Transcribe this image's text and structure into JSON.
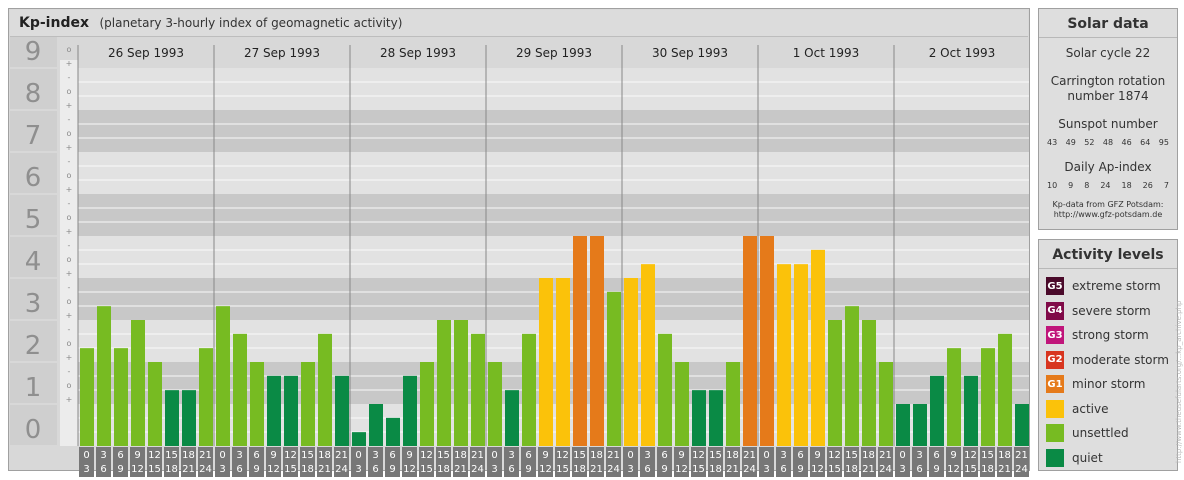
{
  "header": {
    "title": "Kp-index",
    "subtitle": "(planetary 3-hourly index of geomagnetic activity)"
  },
  "chart_data": {
    "type": "bar",
    "ylim": [
      0,
      9
    ],
    "y_ticks": [
      "0",
      "1",
      "2",
      "3",
      "4",
      "5",
      "6",
      "7",
      "8",
      "9"
    ],
    "minor_tick_labels": [
      "+",
      "o",
      "-"
    ],
    "days": [
      "26 Sep 1993",
      "27 Sep 1993",
      "28 Sep 1993",
      "29 Sep 1993",
      "30 Sep 1993",
      "1 Oct 1993",
      "2 Oct 1993"
    ],
    "hour_start": [
      "0",
      "3",
      "6",
      "9",
      "12",
      "15",
      "18",
      "21"
    ],
    "hour_end": [
      "3",
      "6",
      "9",
      "12",
      "15",
      "18",
      "21",
      "24"
    ],
    "values": [
      [
        2.33,
        3.33,
        2.33,
        3.0,
        2.0,
        1.33,
        1.33,
        2.33
      ],
      [
        3.33,
        2.67,
        2.0,
        1.67,
        1.67,
        2.0,
        2.67,
        1.67
      ],
      [
        0.33,
        1.0,
        0.67,
        1.67,
        2.0,
        3.0,
        3.0,
        2.67
      ],
      [
        2.0,
        1.33,
        2.67,
        4.0,
        4.0,
        5.0,
        5.0,
        3.67
      ],
      [
        4.0,
        4.33,
        2.67,
        2.0,
        1.33,
        1.33,
        2.0,
        5.0
      ],
      [
        5.0,
        4.33,
        4.33,
        4.67,
        3.0,
        3.33,
        3.0,
        2.0
      ],
      [
        1.0,
        1.0,
        1.67,
        2.33,
        1.67,
        2.33,
        2.67,
        1.0
      ]
    ]
  },
  "solar": {
    "heading": "Solar data",
    "cycle": "Solar cycle 22",
    "carrington_line1": "Carrington rotation",
    "carrington_line2": "number 1874",
    "sunspot_label": "Sunspot number",
    "sunspot_values": [
      "43",
      "49",
      "52",
      "48",
      "46",
      "64",
      "95"
    ],
    "ap_label": "Daily Ap-index",
    "ap_values": [
      "10",
      "9",
      "8",
      "24",
      "18",
      "26",
      "7"
    ],
    "credit1": "Kp-data from GFZ Potsdam:",
    "credit2": "http://www.gfz-potsdam.de"
  },
  "activity": {
    "heading": "Activity levels",
    "levels": [
      {
        "badge": "G5",
        "label": "extreme storm",
        "color": "#4a0a2a"
      },
      {
        "badge": "G4",
        "label": "severe storm",
        "color": "#800a48"
      },
      {
        "badge": "G3",
        "label": "strong storm",
        "color": "#c0157a"
      },
      {
        "badge": "G2",
        "label": "moderate storm",
        "color": "#d8351f"
      },
      {
        "badge": "G1",
        "label": "minor storm",
        "color": "#e57a1a"
      },
      {
        "badge": "",
        "label": "active",
        "color": "#fbc20a"
      },
      {
        "badge": "",
        "label": "unsettled",
        "color": "#77bb22"
      },
      {
        "badge": "",
        "label": "quiet",
        "color": "#0a8a45"
      }
    ]
  },
  "watermark": "http://www.theusefularts.org/...kp_archive.php"
}
